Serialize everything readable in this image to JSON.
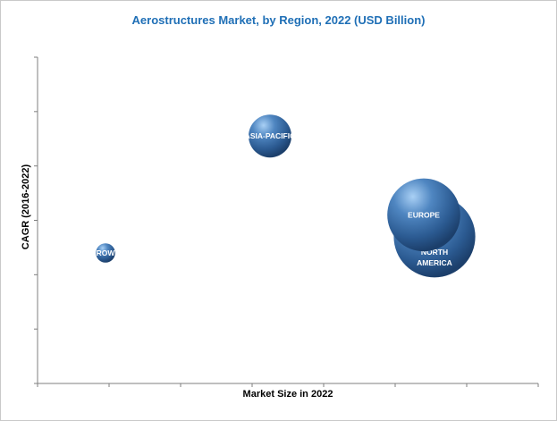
{
  "chart_data": {
    "type": "scatter",
    "subtype": "bubble",
    "title": "Aerostructures Market, by Region, 2022 (USD Billion)",
    "xlabel": "Market Size in 2022",
    "ylabel": "CAGR (2016-2022)",
    "xlim": [
      0,
      7
    ],
    "ylim": [
      0,
      6
    ],
    "x_tick_count": 7,
    "y_tick_count": 6,
    "grid": false,
    "legend": "none",
    "bubble_color": "#3a6ea8",
    "series": [
      {
        "label": "ROW",
        "x": 0.95,
        "y": 2.4,
        "size": 0.45
      },
      {
        "label": "ASIA-PACIFIC",
        "x": 3.25,
        "y": 4.55,
        "size": 1.0
      },
      {
        "label": "NORTH AMERICA",
        "label_lines": [
          "NORTH",
          "AMERICA"
        ],
        "x": 5.55,
        "y": 2.7,
        "size": 1.9
      },
      {
        "label": "EUROPE",
        "x": 5.4,
        "y": 3.1,
        "size": 1.7
      }
    ]
  }
}
